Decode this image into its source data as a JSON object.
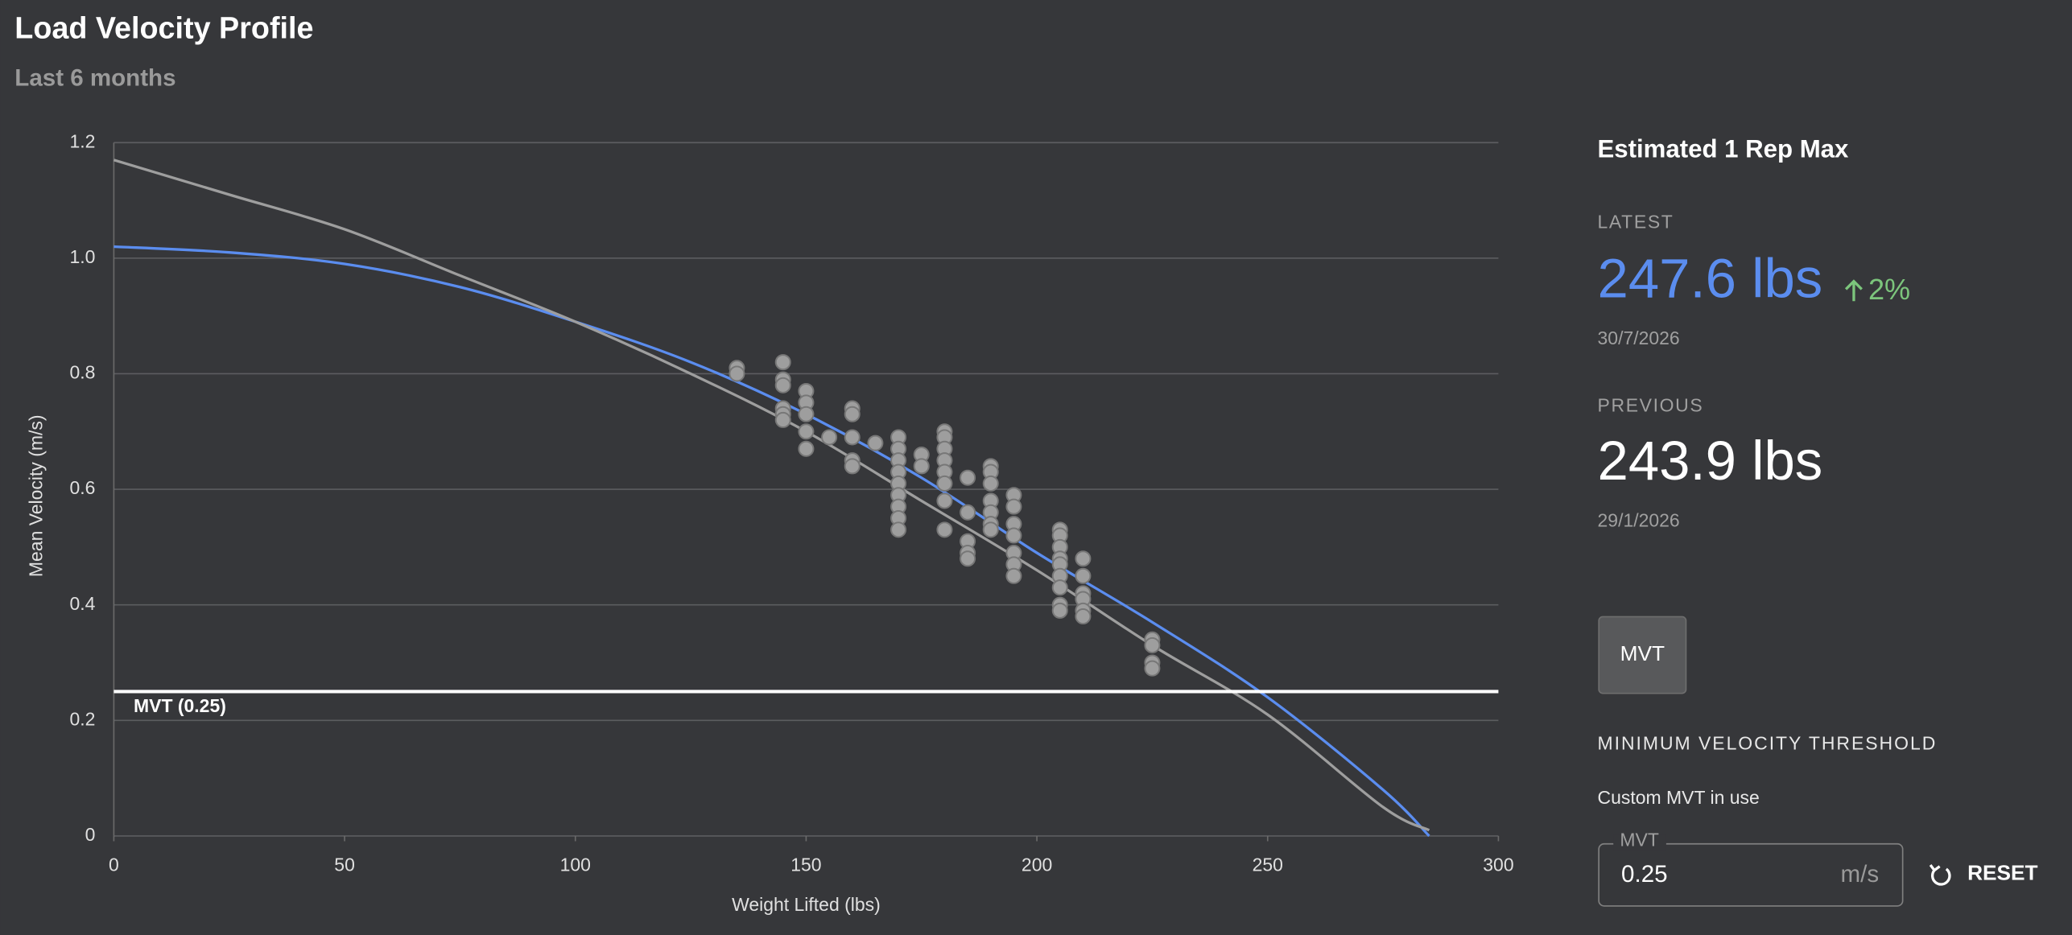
{
  "header": {
    "title": "Load Velocity Profile",
    "subtitle": "Last 6 months"
  },
  "chart_data": {
    "type": "scatter",
    "xlabel": "Weight Lifted (lbs)",
    "ylabel": "Mean Velocity (m/s)",
    "xlim": [
      0,
      300
    ],
    "ylim": [
      0,
      1.2
    ],
    "xticks": [
      0,
      50,
      100,
      150,
      200,
      250,
      300
    ],
    "yticks": [
      0,
      0.2,
      0.4,
      0.6,
      0.8,
      {
        "value": 1,
        "label": "1.0"
      },
      1.2
    ],
    "grid": true,
    "mvt": 0.25,
    "mvt_label": "MVT (0.25)",
    "series": [
      {
        "type": "scatter",
        "color": "#9e9e9e",
        "x": [
          135,
          135,
          145,
          145,
          145,
          145,
          145,
          145,
          150,
          150,
          150,
          150,
          150,
          155,
          160,
          160,
          160,
          160,
          160,
          165,
          170,
          170,
          170,
          170,
          170,
          170,
          170,
          170,
          170,
          175,
          175,
          180,
          180,
          180,
          180,
          180,
          180,
          180,
          180,
          185,
          185,
          185,
          185,
          185,
          190,
          190,
          190,
          190,
          190,
          190,
          190,
          195,
          195,
          195,
          195,
          195,
          195,
          195,
          205,
          205,
          205,
          205,
          205,
          205,
          205,
          205,
          205,
          210,
          210,
          210,
          210,
          210,
          210,
          225,
          225,
          225,
          225
        ],
        "values": [
          0.81,
          0.8,
          0.82,
          0.79,
          0.78,
          0.74,
          0.73,
          0.72,
          0.77,
          0.75,
          0.73,
          0.7,
          0.67,
          0.69,
          0.74,
          0.73,
          0.69,
          0.65,
          0.64,
          0.68,
          0.69,
          0.67,
          0.65,
          0.63,
          0.61,
          0.59,
          0.57,
          0.55,
          0.53,
          0.66,
          0.64,
          0.7,
          0.69,
          0.67,
          0.65,
          0.63,
          0.61,
          0.58,
          0.53,
          0.62,
          0.56,
          0.51,
          0.49,
          0.48,
          0.64,
          0.63,
          0.61,
          0.58,
          0.56,
          0.54,
          0.53,
          0.59,
          0.57,
          0.54,
          0.52,
          0.49,
          0.47,
          0.45,
          0.53,
          0.52,
          0.5,
          0.48,
          0.47,
          0.45,
          0.43,
          0.4,
          0.39,
          0.48,
          0.45,
          0.42,
          0.41,
          0.39,
          0.38,
          0.34,
          0.33,
          0.3,
          0.29
        ]
      },
      {
        "type": "line",
        "color": "#5b8def",
        "x": [
          0,
          25,
          50,
          75,
          100,
          125,
          150,
          175,
          200,
          225,
          250,
          275,
          285
        ],
        "values": [
          1.02,
          1.01,
          0.99,
          0.95,
          0.89,
          0.82,
          0.73,
          0.62,
          0.49,
          0.37,
          0.24,
          0.08,
          0
        ]
      },
      {
        "type": "line",
        "color": "#9e9e9e",
        "x": [
          0,
          25,
          50,
          75,
          100,
          125,
          150,
          175,
          200,
          225,
          250,
          275,
          285
        ],
        "values": [
          1.17,
          1.11,
          1.05,
          0.97,
          0.89,
          0.8,
          0.7,
          0.58,
          0.46,
          0.33,
          0.21,
          0.05,
          0.01
        ]
      }
    ]
  },
  "panel": {
    "title": "Estimated 1 Rep Max",
    "latest_label": "LATEST",
    "latest_value": "247.6 lbs",
    "latest_change": "2%",
    "latest_date": "30/7/2026",
    "previous_label": "PREVIOUS",
    "previous_value": "243.9 lbs",
    "previous_date": "29/1/2026",
    "button": "MVT",
    "section_title": "MINIMUM VELOCITY THRESHOLD",
    "status": "Custom MVT in use",
    "input_label": "MVT",
    "input_value": "0.25",
    "input_unit": "m/s",
    "reset": "RESET"
  }
}
